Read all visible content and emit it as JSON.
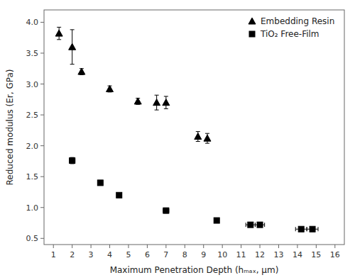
{
  "chart_data": {
    "type": "scatter",
    "xlabel": "Maximum Penetration Depth (hₘₐₓ, µm)",
    "ylabel": "Reduced modulus (Er, GPa)",
    "xlim": [
      0.5,
      16.5
    ],
    "ylim": [
      0.4,
      4.2
    ],
    "xticks": [
      1,
      2,
      3,
      4,
      5,
      6,
      7,
      8,
      9,
      10,
      11,
      12,
      13,
      14,
      15,
      16
    ],
    "yticks": [
      0.5,
      {
        "value": 1.0,
        "label": "1.0"
      },
      1.5,
      {
        "value": 2.0,
        "label": "2.0"
      },
      2.5,
      {
        "value": 3.0,
        "label": "3.0"
      },
      3.5,
      {
        "value": 4.0,
        "label": "4.0"
      }
    ],
    "grid": false,
    "legend": "upper right",
    "series": [
      {
        "name": "Embedding Resin",
        "color": "black",
        "marker": "triangle",
        "x": [
          1.3,
          2.0,
          2.5,
          4.0,
          5.5,
          6.5,
          7.0,
          8.7,
          9.2
        ],
        "values": [
          3.82,
          3.6,
          3.2,
          2.92,
          2.72,
          2.7,
          2.7,
          2.15,
          2.12
        ],
        "yerr": [
          0.1,
          0.28,
          0.05,
          0.05,
          0.05,
          0.12,
          0.1,
          0.08,
          0.08
        ]
      },
      {
        "name": "TiO₂ Free-Film",
        "color": "black",
        "marker": "square",
        "x": [
          2.0,
          3.5,
          4.5,
          7.0,
          9.7,
          11.5,
          12.0,
          14.2,
          14.8
        ],
        "values": [
          1.76,
          1.4,
          1.2,
          0.95,
          0.79,
          0.72,
          0.72,
          0.65,
          0.65
        ],
        "yerr": [
          0.05,
          0.04,
          0.02,
          0.04,
          0.02,
          0.02,
          0.02,
          0.02,
          0.02
        ],
        "xerr": [
          0.15,
          0.12,
          0.12,
          0.15,
          0.12,
          0.25,
          0.25,
          0.3,
          0.3
        ]
      }
    ]
  }
}
